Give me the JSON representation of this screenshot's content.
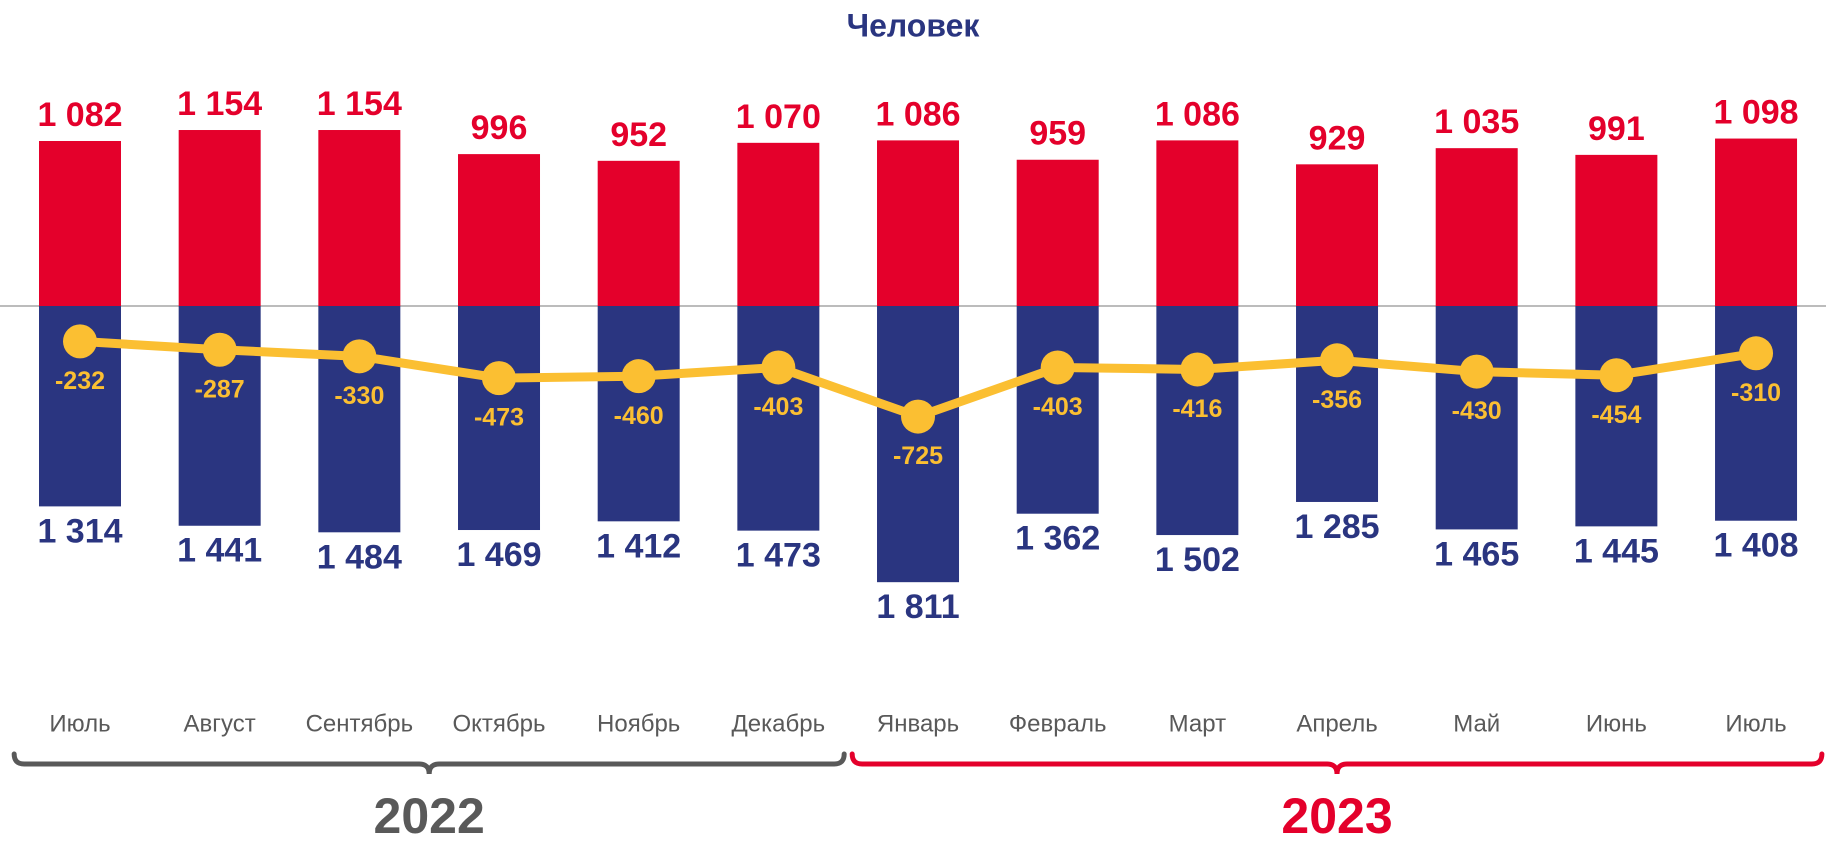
{
  "chart_data": {
    "type": "bar",
    "title": "Человек",
    "categories": [
      "Июль",
      "Август",
      "Сентябрь",
      "Октябрь",
      "Ноябрь",
      "Декабрь",
      "Январь",
      "Февраль",
      "Март",
      "Апрель",
      "Май",
      "Июнь",
      "Июль"
    ],
    "series": [
      {
        "type": "bar",
        "direction": "up",
        "color": "#e4002b",
        "values": [
          1082,
          1154,
          1154,
          996,
          952,
          1070,
          1086,
          959,
          1086,
          929,
          1035,
          991,
          1098
        ],
        "value_labels": [
          "1 082",
          "1 154",
          "1 154",
          "996",
          "952",
          "1 070",
          "1 086",
          "959",
          "1 086",
          "929",
          "1 035",
          "991",
          "1 098"
        ]
      },
      {
        "type": "bar",
        "direction": "down",
        "color": "#2a3580",
        "values": [
          1314,
          1441,
          1484,
          1469,
          1412,
          1473,
          1811,
          1362,
          1502,
          1285,
          1465,
          1445,
          1408
        ],
        "value_labels": [
          "1 314",
          "1 441",
          "1 484",
          "1 469",
          "1 412",
          "1 473",
          "1 811",
          "1 362",
          "1 502",
          "1 285",
          "1 465",
          "1 445",
          "1 408"
        ]
      },
      {
        "type": "line",
        "color": "#fbbf32",
        "values": [
          -232,
          -287,
          -330,
          -473,
          -460,
          -403,
          -725,
          -403,
          -416,
          -356,
          -430,
          -454,
          -310
        ]
      }
    ],
    "groups": [
      {
        "label": "2022",
        "first": 0,
        "last": 5,
        "color": "#595959"
      },
      {
        "label": "2023",
        "first": 6,
        "last": 12,
        "color": "#e4002b"
      }
    ]
  }
}
